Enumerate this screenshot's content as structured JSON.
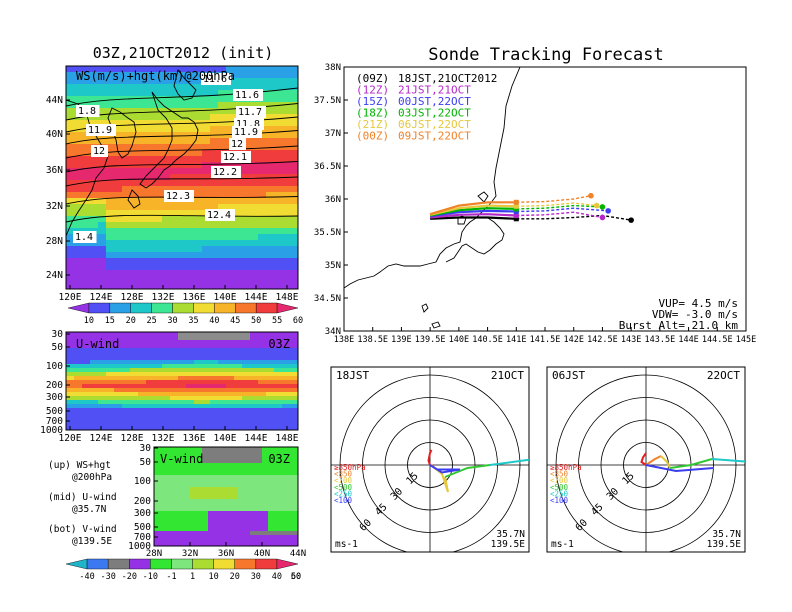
{
  "colors": {
    "frame": "#000000",
    "coast": "#000000",
    "ws_scale": [
      "#9632e6",
      "#5050f5",
      "#2aa0e6",
      "#1ec8c8",
      "#3ce692",
      "#aadc32",
      "#f0dc32",
      "#f7b428",
      "#f7782d",
      "#f03c3c",
      "#e6286e"
    ],
    "v_scale": [
      "#20b4c8",
      "#3c78f0",
      "#7d7d7d",
      "#9632e6",
      "#32e632",
      "#7de67d",
      "#aadc32",
      "#f0dc32",
      "#f7782d",
      "#f03c3c",
      "#e6286e"
    ]
  },
  "map_panel": {
    "title": "03Z,21OCT2012 (init)",
    "overlay_label": "WS(m/s)+hgt(km)@200hPa",
    "lat_ticks": [
      "44N",
      "40N",
      "36N",
      "32N",
      "28N",
      "24N"
    ],
    "lon_ticks": [
      "120E",
      "124E",
      "128E",
      "132E",
      "136E",
      "140E",
      "144E",
      "148E"
    ],
    "contour_labels": [
      "11.6",
      "11.7",
      "11.8",
      "11.9",
      "12",
      "12.1",
      "12.2",
      "12.3",
      "12.4",
      "1.8",
      "11.9",
      "12",
      "1.4",
      "11.6"
    ],
    "colorbar_ticks": [
      "10",
      "15",
      "20",
      "25",
      "30",
      "35",
      "40",
      "45",
      "50",
      "55",
      "60"
    ]
  },
  "u_panel": {
    "label": "U-wind",
    "time": "03Z",
    "y_ticks": [
      "30",
      "50",
      "100",
      "200",
      "300",
      "500",
      "700",
      "1000"
    ],
    "x_ticks": [
      "120E",
      "124E",
      "128E",
      "132E",
      "136E",
      "140E",
      "144E",
      "148E"
    ]
  },
  "v_panel": {
    "label": "V-wind",
    "time": "03Z",
    "y_ticks": [
      "30",
      "50",
      "100",
      "200",
      "300",
      "500",
      "700",
      "1000"
    ],
    "x_ticks": [
      "28N",
      "32N",
      "36N",
      "40N",
      "44N"
    ],
    "colorbar_ticks": [
      "-40",
      "-30",
      "-20",
      "-10",
      "-1",
      "1",
      "10",
      "20",
      "30",
      "40",
      "50",
      "60"
    ]
  },
  "legend_text": [
    {
      "line1": "(up) WS+hgt",
      "line2": "@200hPa"
    },
    {
      "line1": "(mid) U-wind",
      "line2": "@35.7N"
    },
    {
      "line1": "(bot) V-wind",
      "line2": "@139.5E"
    }
  ],
  "track": {
    "title": "Sonde Tracking Forecast",
    "lat_ticks": [
      "38N",
      "37.5N",
      "37N",
      "36.5N",
      "36N",
      "35.5N",
      "35N",
      "34.5N",
      "34N"
    ],
    "lon_ticks": [
      "138E",
      "138.5E",
      "139E",
      "139.5E",
      "140E",
      "140.5E",
      "141E",
      "141.5E",
      "142E",
      "142.5E",
      "143E",
      "143.5E",
      "144E",
      "144.5E",
      "145E"
    ],
    "launches": [
      {
        "code": "(09Z)",
        "local": "18JST,21OCT2012",
        "color": "#000000"
      },
      {
        "code": "(12Z)",
        "local": "21JST,21OCT",
        "color": "#b428c8"
      },
      {
        "code": "(15Z)",
        "local": "00JST,22OCT",
        "color": "#3c3cf0"
      },
      {
        "code": "(18Z)",
        "local": "03JST,22OCT",
        "color": "#00b400"
      },
      {
        "code": "(21Z)",
        "local": "06JST,22OCT",
        "color": "#e6c83c"
      },
      {
        "code": "(00Z)",
        "local": "09JST,22OCT",
        "color": "#f08228"
      }
    ],
    "vup": "VUP= 4.5 m/s",
    "vdw": "VDW= -3.0 m/s",
    "burst": "Burst Alt= 21.0 km"
  },
  "hodo_left": {
    "time": "18JST",
    "date": "21OCT",
    "rings": [
      "15",
      "30",
      "45",
      "60"
    ],
    "levels": [
      {
        "label": "≥850hPa",
        "color": "#e61e1e"
      },
      {
        "label": "<850",
        "color": "#f08228"
      },
      {
        "label": "<700",
        "color": "#e6c83c"
      },
      {
        "label": "<500",
        "color": "#32c832"
      },
      {
        "label": "<250",
        "color": "#1ec8c8"
      },
      {
        "label": "<100",
        "color": "#3c3cf0"
      }
    ],
    "unit": "ms-1",
    "lat": "35.7N",
    "lon": "139.5E"
  },
  "hodo_right": {
    "time": "06JST",
    "date": "22OCT",
    "rings": [
      "15",
      "30",
      "45",
      "60"
    ],
    "levels": [
      {
        "label": "≥850hPa",
        "color": "#e61e1e"
      },
      {
        "label": "<850",
        "color": "#f08228"
      },
      {
        "label": "<700",
        "color": "#e6c83c"
      },
      {
        "label": "<500",
        "color": "#32c832"
      },
      {
        "label": "<250",
        "color": "#1ec8c8"
      },
      {
        "label": "<100",
        "color": "#3c3cf0"
      }
    ],
    "unit": "ms-1",
    "lat": "35.7N",
    "lon": "139.5E"
  },
  "chart_data": [
    {
      "type": "heatmap",
      "title": "03Z,21OCT2012 (init)",
      "subtitle": "WS(m/s)+hgt(km)@200hPa",
      "xlim": [
        120,
        150
      ],
      "ylim": [
        22,
        48
      ],
      "x_ticks": [
        "120E",
        "124E",
        "128E",
        "132E",
        "136E",
        "140E",
        "144E",
        "148E"
      ],
      "y_ticks": [
        "24N",
        "28N",
        "32N",
        "36N",
        "40N",
        "44N"
      ],
      "colorbar": [
        10,
        15,
        20,
        25,
        30,
        35,
        40,
        45,
        50,
        55,
        60
      ],
      "jet_core_lat": 36,
      "height_contours_km": [
        11.6,
        11.7,
        11.8,
        11.9,
        12,
        12.1,
        12.2,
        12.3,
        12.4
      ]
    },
    {
      "type": "heatmap",
      "title": "U-wind",
      "xlim": [
        120,
        150
      ],
      "x_ticks": [
        "120E",
        "124E",
        "128E",
        "132E",
        "136E",
        "140E",
        "144E",
        "148E"
      ],
      "y_ticks_hPa": [
        30,
        50,
        100,
        200,
        300,
        500,
        700,
        1000
      ],
      "jet_max_level_hPa": 200
    },
    {
      "type": "heatmap",
      "title": "V-wind",
      "xlim": [
        26,
        44
      ],
      "x_ticks": [
        "28N",
        "32N",
        "36N",
        "40N",
        "44N"
      ],
      "y_ticks_hPa": [
        30,
        50,
        100,
        200,
        300,
        500,
        700,
        1000
      ],
      "colorbar": [
        -40,
        -30,
        -20,
        -10,
        -1,
        1,
        10,
        20,
        30,
        40,
        50,
        60
      ]
    },
    {
      "type": "line",
      "title": "Sonde Tracking Forecast",
      "xlim": [
        138,
        145
      ],
      "ylim": [
        34,
        38
      ],
      "launch_point": [
        139.5,
        35.7
      ],
      "series": [
        {
          "name": "(09Z) 18JST,21OCT2012",
          "x": [
            139.5,
            140.0,
            140.5,
            141.0,
            141.5,
            142.0,
            142.5,
            143.0
          ],
          "y": [
            35.7,
            35.72,
            35.72,
            35.7,
            35.7,
            35.72,
            35.75,
            35.68
          ]
        },
        {
          "name": "(12Z) 21JST,21OCT",
          "x": [
            139.5,
            140.0,
            140.5,
            141.0,
            141.5,
            142.0,
            142.5
          ],
          "y": [
            35.72,
            35.76,
            35.77,
            35.75,
            35.76,
            35.8,
            35.72
          ]
        },
        {
          "name": "(15Z) 00JST,22OCT",
          "x": [
            139.5,
            140.0,
            140.5,
            141.0,
            141.5,
            142.0,
            142.6
          ],
          "y": [
            35.74,
            35.8,
            35.82,
            35.81,
            35.82,
            35.86,
            35.82
          ]
        },
        {
          "name": "(18Z) 03JST,22OCT",
          "x": [
            139.5,
            140.0,
            140.5,
            141.0,
            141.5,
            142.0,
            142.5
          ],
          "y": [
            35.75,
            35.83,
            35.86,
            35.85,
            35.86,
            35.9,
            35.88
          ]
        },
        {
          "name": "(21Z) 06JST,22OCT",
          "x": [
            139.5,
            140.0,
            140.5,
            141.0,
            141.5,
            142.0,
            142.4
          ],
          "y": [
            35.76,
            35.86,
            35.9,
            35.89,
            35.9,
            35.94,
            35.9
          ]
        },
        {
          "name": "(00Z) 09JST,22OCT",
          "x": [
            139.5,
            140.0,
            140.5,
            141.0,
            141.5,
            142.0,
            142.3
          ],
          "y": [
            35.77,
            35.9,
            35.95,
            35.95,
            35.96,
            36.0,
            36.05
          ]
        }
      ]
    },
    {
      "type": "line",
      "title": "hodograph 18JST 21OCT",
      "rings_ms": [
        15,
        30,
        45,
        60
      ],
      "series": [
        {
          "name": "≥850hPa",
          "u": [
            0,
            -1,
            0,
            1
          ],
          "v": [
            0,
            3,
            8,
            10
          ]
        },
        {
          "name": "<850",
          "u": [
            1,
            3
          ],
          "v": [
            0,
            -2
          ]
        },
        {
          "name": "<700",
          "u": [
            3,
            8,
            12,
            10
          ],
          "v": [
            -2,
            -6,
            -18,
            -8
          ]
        },
        {
          "name": "<500",
          "u": [
            10,
            25,
            40
          ],
          "v": [
            -8,
            -2,
            0
          ]
        },
        {
          "name": "<250",
          "u": [
            40,
            70,
            78
          ],
          "v": [
            0,
            4,
            8
          ]
        },
        {
          "name": "<100",
          "u": [
            0,
            8,
            20,
            5
          ],
          "v": [
            0,
            -5,
            -3,
            -3
          ]
        }
      ]
    },
    {
      "type": "line",
      "title": "hodograph 06JST 22OCT",
      "rings_ms": [
        15,
        30,
        45,
        60
      ],
      "series": [
        {
          "name": "≥850hPa",
          "u": [
            0,
            -3,
            -2,
            0
          ],
          "v": [
            0,
            2,
            5,
            8
          ]
        },
        {
          "name": "<850",
          "u": [
            0,
            6,
            10
          ],
          "v": [
            0,
            4,
            6
          ]
        },
        {
          "name": "<700",
          "u": [
            10,
            14,
            16
          ],
          "v": [
            6,
            2,
            -2
          ]
        },
        {
          "name": "<500",
          "u": [
            16,
            30,
            44
          ],
          "v": [
            -2,
            0,
            4
          ]
        },
        {
          "name": "<250",
          "u": [
            44,
            70,
            80
          ],
          "v": [
            4,
            2,
            8
          ]
        },
        {
          "name": "<100",
          "u": [
            0,
            20,
            45
          ],
          "v": [
            0,
            -4,
            -2
          ]
        }
      ]
    }
  ]
}
